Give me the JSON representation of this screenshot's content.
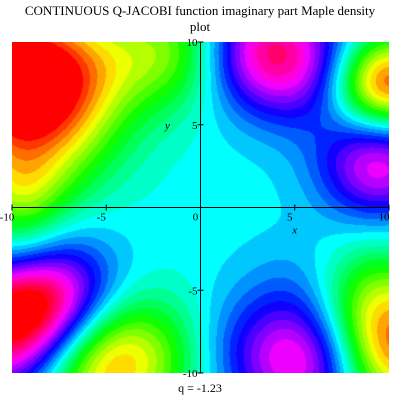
{
  "title_lines": [
    "CONTINUOUS  Q-JACOBI  function imaginary part  Maple density",
    "plot"
  ],
  "caption": "q =   -1.23",
  "chart_data": {
    "type": "heatmap",
    "title": "CONTINUOUS  Q-JACOBI  function imaginary part  Maple density plot",
    "xlabel": "x",
    "ylabel": "y",
    "xlim": [
      -10,
      10
    ],
    "ylim": [
      -10,
      10
    ],
    "x_ticks": [
      -10,
      -5,
      0,
      5,
      10
    ],
    "y_ticks": [
      -10,
      -5,
      5,
      10
    ],
    "x_tick_labels": [
      "-10",
      "-5",
      "0",
      "5",
      "10"
    ],
    "y_tick_labels": [
      "-10",
      "-5",
      "5",
      "10"
    ],
    "colormap": [
      "#ff0000",
      "#ffff00",
      "#00ff00",
      "#00ffff",
      "#0000ff",
      "#ff00ff"
    ],
    "background_hue": "#00ffff",
    "features": [
      {
        "x": -10,
        "y": 8.5,
        "value": 1.0,
        "width": 3.2
      },
      {
        "x": -8.5,
        "y": 5,
        "value": 0.55,
        "width": 3.0
      },
      {
        "x": -9.5,
        "y": 1,
        "value": 0.35,
        "width": 1.8
      },
      {
        "x": -6,
        "y": 8.5,
        "value": 0.15,
        "width": 2.2
      },
      {
        "x": -1.5,
        "y": 9.5,
        "value": 0.5,
        "width": 2.5
      },
      {
        "x": 3.5,
        "y": 9.5,
        "value": -0.8,
        "width": 2.5
      },
      {
        "x": 6.5,
        "y": 7.5,
        "value": -0.25,
        "width": 2.5
      },
      {
        "x": 9.8,
        "y": 7.5,
        "value": 1.0,
        "width": 2.0
      },
      {
        "x": 9.5,
        "y": 2.5,
        "value": -0.65,
        "width": 2.2
      },
      {
        "x": -10,
        "y": -7.5,
        "value": -1.0,
        "width": 2.8
      },
      {
        "x": -8,
        "y": -5,
        "value": -0.6,
        "width": 2.4
      },
      {
        "x": -9.5,
        "y": -2.5,
        "value": 0.3,
        "width": 1.8
      },
      {
        "x": -5.5,
        "y": -9.5,
        "value": 0.8,
        "width": 2.8
      },
      {
        "x": -2,
        "y": -8.5,
        "value": 0.2,
        "width": 2.5
      },
      {
        "x": 2,
        "y": -8.5,
        "value": -0.2,
        "width": 2.5
      },
      {
        "x": 6,
        "y": -9.5,
        "value": -0.8,
        "width": 2.5
      },
      {
        "x": 9.8,
        "y": -8.5,
        "value": 1.0,
        "width": 2.8
      },
      {
        "x": 8.5,
        "y": -5,
        "value": 0.35,
        "width": 2.2
      },
      {
        "x": 6.5,
        "y": -5.5,
        "value": -0.3,
        "width": 2.5
      }
    ]
  }
}
